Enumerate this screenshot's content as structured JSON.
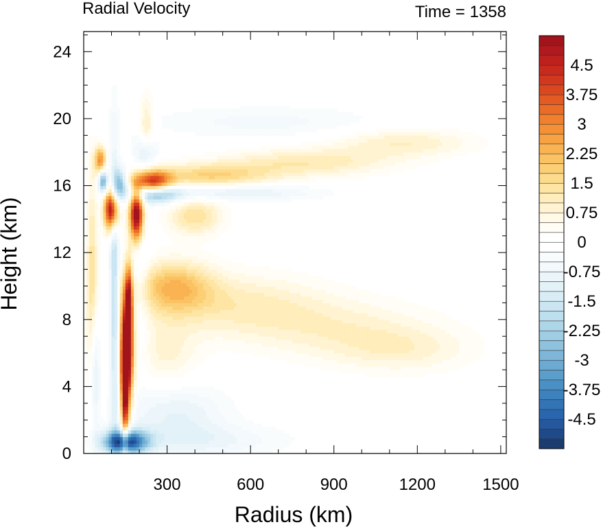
{
  "chart_data": {
    "type": "heatmap",
    "title_left": "Radial Velocity",
    "title_right": "Time = 1358",
    "xlabel": "Radius (km)",
    "ylabel": "Height (km)",
    "xlim": [
      0,
      1520
    ],
    "ylim": [
      0,
      25.2
    ],
    "x_ticks": [
      300,
      600,
      900,
      1200,
      1500
    ],
    "y_ticks": [
      0,
      4,
      8,
      12,
      16,
      20,
      24
    ],
    "grid": false,
    "colorbar": {
      "levels": [
        -5.25,
        -5.0,
        -4.75,
        -4.5,
        -4.25,
        -4.0,
        -3.75,
        -3.5,
        -3.25,
        -3.0,
        -2.75,
        -2.5,
        -2.25,
        -2.0,
        -1.75,
        -1.5,
        -1.25,
        -1.0,
        -0.75,
        -0.5,
        -0.25,
        0.0,
        0.25,
        0.5,
        0.75,
        1.0,
        1.25,
        1.5,
        1.75,
        2.0,
        2.25,
        2.5,
        2.75,
        3.0,
        3.25,
        3.5,
        3.75,
        4.0,
        4.25,
        4.5,
        4.75,
        5.0,
        5.25
      ],
      "labels": [
        "-4.5",
        "-3.75",
        "-3",
        "-2.25",
        "-1.5",
        "-0.75",
        "0",
        "0.75",
        "1.5",
        "2.25",
        "3",
        "3.75",
        "4.5"
      ],
      "colors": [
        "#1b3c6e",
        "#1f4a8a",
        "#24579e",
        "#2a66ad",
        "#3274b5",
        "#3d82bd",
        "#4b90c4",
        "#5b9dcb",
        "#6caad2",
        "#7db6d8",
        "#8ec2de",
        "#9ecde4",
        "#aed6e9",
        "#bddfee",
        "#cbe6f2",
        "#d8edf5",
        "#e3f2f8",
        "#ecf6fa",
        "#f3f9fc",
        "#f9fcfd",
        "#ffffff",
        "#ffffff",
        "#fffdf5",
        "#fff9e6",
        "#fff3d1",
        "#ffedbb",
        "#fee5a4",
        "#fddb8c",
        "#fccf76",
        "#fbc263",
        "#f9b352",
        "#f7a343",
        "#f49137",
        "#f07f2e",
        "#ea6c27",
        "#e35a22",
        "#db481f",
        "#d2381d",
        "#c82a1d",
        "#bd201d",
        "#b0191d",
        "#a1141c"
      ]
    },
    "features": [
      {
        "x": 155,
        "y": 6.2,
        "sx": 16,
        "sy": 2.6,
        "v": 6.0
      },
      {
        "x": 148,
        "y": 3.5,
        "sx": 9,
        "sy": 2.2,
        "v": 3.5
      },
      {
        "x": 163,
        "y": 9.0,
        "sx": 8,
        "sy": 1.6,
        "v": 3.2
      },
      {
        "x": 100,
        "y": 14.6,
        "sx": 18,
        "sy": 0.9,
        "v": 5.5
      },
      {
        "x": 190,
        "y": 14.3,
        "sx": 18,
        "sy": 1.2,
        "v": 6.0
      },
      {
        "x": 60,
        "y": 17.5,
        "sx": 14,
        "sy": 0.6,
        "v": 3.0
      },
      {
        "x": 250,
        "y": 16.2,
        "sx": 45,
        "sy": 0.5,
        "v": 4.0
      },
      {
        "x": 450,
        "y": 16.6,
        "sx": 160,
        "sy": 0.5,
        "v": 1.7
      },
      {
        "x": 800,
        "y": 17.4,
        "sx": 220,
        "sy": 0.6,
        "v": 1.2
      },
      {
        "x": 1150,
        "y": 18.6,
        "sx": 180,
        "sy": 0.6,
        "v": 1.0
      },
      {
        "x": 400,
        "y": 14.2,
        "sx": 70,
        "sy": 0.8,
        "v": 1.5
      },
      {
        "x": 320,
        "y": 10.0,
        "sx": 100,
        "sy": 1.1,
        "v": 2.0
      },
      {
        "x": 550,
        "y": 9.0,
        "sx": 220,
        "sy": 1.3,
        "v": 1.0
      },
      {
        "x": 900,
        "y": 7.5,
        "sx": 250,
        "sy": 1.3,
        "v": 0.8
      },
      {
        "x": 1150,
        "y": 6.2,
        "sx": 180,
        "sy": 1.0,
        "v": 0.75
      },
      {
        "x": 300,
        "y": 6.0,
        "sx": 80,
        "sy": 1.5,
        "v": 0.8
      },
      {
        "x": 30,
        "y": 10.0,
        "sx": 14,
        "sy": 5.0,
        "v": 1.5
      },
      {
        "x": 225,
        "y": 19.0,
        "sx": 20,
        "sy": 1.5,
        "v": 1.6
      },
      {
        "x": 130,
        "y": 16.1,
        "sx": 18,
        "sy": 0.7,
        "v": -2.8
      },
      {
        "x": 70,
        "y": 16.3,
        "sx": 12,
        "sy": 0.5,
        "v": -3.5
      },
      {
        "x": 260,
        "y": 15.5,
        "sx": 60,
        "sy": 0.4,
        "v": -2.8
      },
      {
        "x": 520,
        "y": 15.6,
        "sx": 220,
        "sy": 0.35,
        "v": -1.2
      },
      {
        "x": 225,
        "y": 18.0,
        "sx": 25,
        "sy": 0.8,
        "v": -2.0
      },
      {
        "x": 650,
        "y": 19.8,
        "sx": 300,
        "sy": 0.7,
        "v": -0.6
      },
      {
        "x": 150,
        "y": 0.7,
        "sx": 55,
        "sy": 0.5,
        "v": -5.0
      },
      {
        "x": 420,
        "y": 0.8,
        "sx": 220,
        "sy": 0.7,
        "v": -0.8
      },
      {
        "x": 330,
        "y": 2.5,
        "sx": 130,
        "sy": 1.2,
        "v": -1.0
      },
      {
        "x": 110,
        "y": 10.0,
        "sx": 12,
        "sy": 6.0,
        "v": -2.0
      },
      {
        "x": 200,
        "y": 12.0,
        "sx": 25,
        "sy": 4.0,
        "v": -0.8
      },
      {
        "x": 40,
        "y": 5.0,
        "sx": 12,
        "sy": 2.5,
        "v": -1.5
      }
    ]
  }
}
